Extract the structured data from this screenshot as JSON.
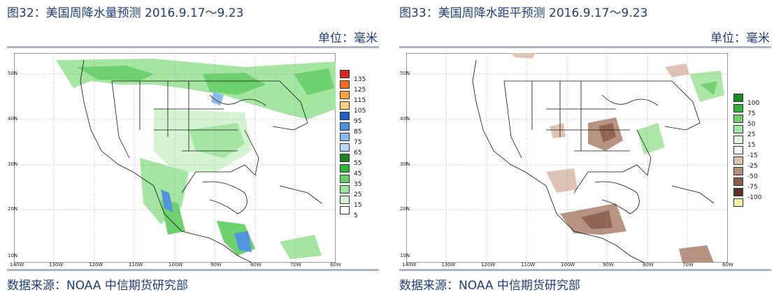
{
  "panels": [
    {
      "title": "图32：美国周降水量预测 2016.9.17～9.23",
      "unit": "单位：毫米",
      "source": "数据来源：NOAA 中信期货研究部",
      "legend": [
        {
          "label": "135",
          "color": "#d7261e"
        },
        {
          "label": "125",
          "color": "#f26b22"
        },
        {
          "label": "115",
          "color": "#f9a13a"
        },
        {
          "label": "105",
          "color": "#fbd27a"
        },
        {
          "label": "95",
          "color": "#1c5fc9"
        },
        {
          "label": "85",
          "color": "#4a8fe0"
        },
        {
          "label": "75",
          "color": "#86b8ee"
        },
        {
          "label": "65",
          "color": "#bcd8f7"
        },
        {
          "label": "55",
          "color": "#178a1f"
        },
        {
          "label": "45",
          "color": "#2fb33a"
        },
        {
          "label": "35",
          "color": "#66cf66"
        },
        {
          "label": "25",
          "color": "#9fe49c"
        },
        {
          "label": "15",
          "color": "#d2f4cf"
        },
        {
          "label": "5",
          "color": "#ffffff"
        }
      ]
    },
    {
      "title": "图33：美国周降水距平预测 2016.9.17～9.23",
      "unit": "单位：毫米",
      "source": "数据来源：NOAA 中信期货研究部",
      "legend": [
        {
          "label": "100",
          "color": "#1f8a22"
        },
        {
          "label": "75",
          "color": "#3aad3c"
        },
        {
          "label": "50",
          "color": "#6fcf6c"
        },
        {
          "label": "25",
          "color": "#a9e6a4"
        },
        {
          "label": "15",
          "color": "#e4f8e1"
        },
        {
          "label": "-15",
          "color": "#ffffff"
        },
        {
          "label": "-25",
          "color": "#dec1b3"
        },
        {
          "label": "-50",
          "color": "#b48e7c"
        },
        {
          "label": "-75",
          "color": "#8a5d4b"
        },
        {
          "label": "-100",
          "color": "#5c3427"
        },
        {
          "label": "",
          "color": "#fbf0a8"
        }
      ]
    }
  ],
  "axes": {
    "lat_labels": [
      "50N",
      "40N",
      "30N",
      "20N",
      "10N"
    ],
    "lon_labels": [
      "140W",
      "130W",
      "120W",
      "110W",
      "100W",
      "90W",
      "80W",
      "70W",
      "60W"
    ]
  }
}
